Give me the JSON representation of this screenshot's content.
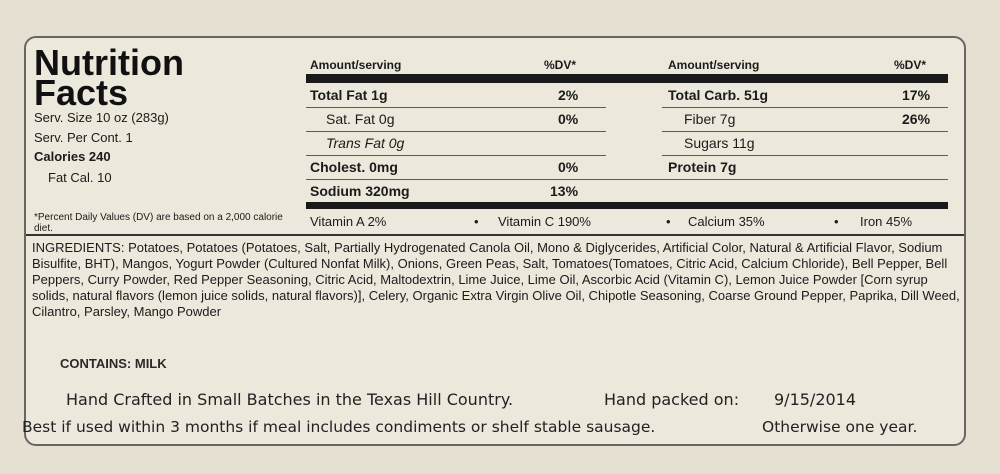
{
  "nutrition": {
    "title_line1": "Nutrition",
    "title_line2": "Facts",
    "serv_size": "Serv. Size 10 oz (283g)",
    "serv_per_cont": "Serv. Per Cont. 1",
    "calories": "Calories 240",
    "fat_cal": "Fat Cal. 10",
    "pdv_note": "*Percent Daily Values (DV) are based on a 2,000 calorie diet.",
    "headers": {
      "amount1": "Amount/serving",
      "dv1": "%DV*",
      "amount2": "Amount/serving",
      "dv2": "%DV*"
    },
    "left_rows": [
      {
        "label": "Total Fat 1g",
        "dv": "2%"
      },
      {
        "label": "Sat. Fat 0g",
        "dv": "0%"
      },
      {
        "label": "Trans Fat 0g",
        "dv": ""
      },
      {
        "label": "Cholest. 0mg",
        "dv": "0%"
      },
      {
        "label": "Sodium 320mg",
        "dv": "13%"
      }
    ],
    "right_rows": [
      {
        "label": "Total Carb. 51g",
        "dv": "17%"
      },
      {
        "label": "Fiber 7g",
        "dv": "26%"
      },
      {
        "label": "Sugars 11g",
        "dv": ""
      },
      {
        "label": "Protein 7g",
        "dv": ""
      }
    ],
    "vitamins": {
      "a": "Vitamin A 2%",
      "c": "Vitamin C 190%",
      "calcium": "Calcium 35%",
      "iron": "Iron 45%",
      "sep": "•"
    }
  },
  "ingredients": "INGREDIENTS: Potatoes, Potatoes (Potatoes, Salt, Partially Hydrogenated Canola Oil, Mono & Diglycerides, Artificial Color, Natural & Artificial Flavor, Sodium Bisulfite, BHT), Mangos, Yogurt Powder (Cultured Nonfat Milk), Onions, Green Peas, Salt, Tomatoes(Tomatoes, Citric Acid, Calcium Chloride), Bell Pepper, Bell Peppers, Curry Powder, Red Pepper Seasoning, Citric Acid, Maltodextrin, Lime Juice, Lime Oil, Ascorbic Acid (Vitamin C), Lemon Juice Powder [Corn syrup solids, natural flavors (lemon juice solids, natural flavors)], Celery, Organic Extra Virgin Olive Oil, Chipotle Seasoning, Coarse Ground Pepper, Paprika, Dill Weed, Cilantro, Parsley, Mango Powder",
  "contains": "CONTAINS: MILK",
  "footer": {
    "crafted": "Hand Crafted in Small Batches in the Texas Hill Country.",
    "packed_label": "Hand packed on:",
    "packed_date": "9/15/2014",
    "best_if": "Best if used within 3 months if meal includes condiments or shelf stable sausage.",
    "otherwise": "Otherwise one year."
  }
}
